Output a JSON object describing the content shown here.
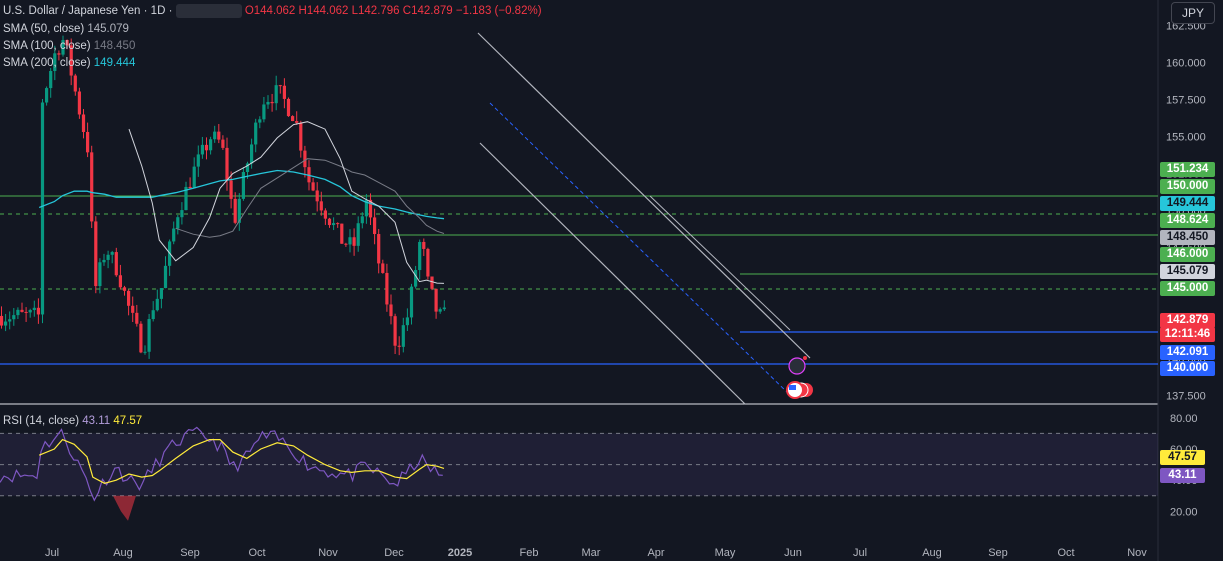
{
  "header": {
    "symbol": "U.S. Dollar / Japanese Yen · 1D ·",
    "open": "O144.062",
    "high": "H144.062",
    "low": "L142.796",
    "close": "C142.879",
    "change": "−1.183 (−0.82%)",
    "sma50_label": "SMA (50, close)",
    "sma50_value": "145.079",
    "sma100_label": "SMA (100, close)",
    "sma100_value": "148.450",
    "sma200_label": "SMA (200, close)",
    "sma200_value": "149.444",
    "rsi_label": "RSI (14, close)",
    "rsi_value": "43.11",
    "rsi_ma_value": "47.57",
    "currency_button": "JPY"
  },
  "price_axis": {
    "ticks": [
      "162.500",
      "160.000",
      "157.500",
      "155.000",
      "152.500",
      "150.000",
      "147.500",
      "145.000",
      "142.500",
      "140.000",
      "137.500"
    ]
  },
  "price_tags": [
    {
      "text": "151.234",
      "bg": "#4caf50",
      "fg": "#ffffff"
    },
    {
      "text": "150.000",
      "bg": "#4caf50",
      "fg": "#ffffff"
    },
    {
      "text": "149.444",
      "bg": "#26c6da",
      "fg": "#131722"
    },
    {
      "text": "148.624",
      "bg": "#4caf50",
      "fg": "#ffffff"
    },
    {
      "text": "148.450",
      "bg": "#b2b5be",
      "fg": "#131722"
    },
    {
      "text": "146.000",
      "bg": "#4caf50",
      "fg": "#ffffff"
    },
    {
      "text": "145.079",
      "bg": "#d1d4dc",
      "fg": "#131722"
    },
    {
      "text": "145.000",
      "bg": "#4caf50",
      "fg": "#ffffff"
    },
    {
      "text": "142.879",
      "bg": "#f23645",
      "fg": "#ffffff"
    },
    {
      "text": "12:11:46",
      "bg": "#f23645",
      "fg": "#ffffff"
    },
    {
      "text": "142.091",
      "bg": "#2962ff",
      "fg": "#ffffff"
    },
    {
      "text": "140.000",
      "bg": "#2962ff",
      "fg": "#ffffff"
    }
  ],
  "rsi_axis": {
    "ticks": [
      "80.00",
      "60.00",
      "40.00",
      "20.00"
    ],
    "tags": [
      {
        "text": "47.57",
        "bg": "#ffeb3b",
        "fg": "#131722"
      },
      {
        "text": "43.11",
        "bg": "#7e57c2",
        "fg": "#ffffff"
      }
    ]
  },
  "time_axis": [
    "Jul",
    "Aug",
    "Sep",
    "Oct",
    "Nov",
    "Dec",
    "2025",
    "Feb",
    "Mar",
    "Apr",
    "May",
    "Jun",
    "Jul",
    "Aug",
    "Sep",
    "Oct",
    "Nov"
  ],
  "colors": {
    "up": "#089981",
    "down": "#f23645",
    "sma50": "#d1d4dc",
    "sma100": "#787b86",
    "sma200": "#26c6da",
    "rsi": "#7e57c2",
    "rsi_ma": "#ffeb3b",
    "green_level": "#4caf50",
    "blue_level": "#2962ff"
  },
  "chart_data": {
    "type": "candlestick",
    "title": "U.S. Dollar / Japanese Yen · 1D",
    "ylim": [
      137.0,
      163.0
    ],
    "dates": [
      "2024-06-20",
      "2024-07-03",
      "2024-07-10",
      "2024-07-20",
      "2024-07-31",
      "2024-08-05",
      "2024-08-15",
      "2024-08-25",
      "2024-09-05",
      "2024-09-16",
      "2024-09-25",
      "2024-10-01",
      "2024-10-15",
      "2024-10-30",
      "2024-11-13",
      "2024-11-22",
      "2024-12-03",
      "2024-12-15",
      "2024-12-27",
      "2025-01-10",
      "2025-01-24",
      "2025-02-05",
      "2025-02-20",
      "2025-03-05",
      "2025-03-15",
      "2025-03-26",
      "2025-04-07",
      "2025-04-21",
      "2025-05-01",
      "2025-05-12",
      "2025-05-18",
      "2025-05-27",
      "2025-06-02"
    ],
    "close": [
      157.0,
      160.8,
      161.6,
      157.9,
      154.0,
      144.5,
      147.5,
      146.0,
      143.0,
      140.6,
      143.8,
      144.6,
      149.8,
      152.8,
      155.0,
      154.5,
      149.3,
      153.5,
      157.5,
      158.0,
      156.3,
      152.0,
      149.8,
      148.0,
      147.5,
      150.8,
      146.0,
      140.8,
      143.0,
      148.3,
      145.0,
      142.8,
      142.879
    ],
    "sma50": [
      null,
      null,
      null,
      null,
      null,
      null,
      null,
      null,
      155.5,
      153.0,
      150.5,
      148.0,
      146.6,
      147.5,
      149.5,
      151.5,
      152.5,
      153.0,
      153.6,
      154.9,
      155.8,
      156.0,
      155.5,
      153.5,
      151.3,
      150.8,
      150.3,
      149.2,
      146.5,
      145.2,
      145.3,
      145.1,
      145.079
    ],
    "sma100": [
      null,
      null,
      null,
      null,
      null,
      null,
      null,
      null,
      null,
      null,
      null,
      null,
      148.8,
      148.4,
      148.2,
      148.3,
      148.6,
      150.1,
      151.5,
      152.2,
      152.9,
      153.5,
      153.4,
      153.0,
      152.6,
      152.4,
      151.9,
      151.3,
      150.3,
      149.5,
      149.0,
      148.6,
      148.45
    ],
    "sma200": [
      150.2,
      150.6,
      151.0,
      151.3,
      151.3,
      151.2,
      151.1,
      150.9,
      150.9,
      150.9,
      150.9,
      151.0,
      151.2,
      151.5,
      151.8,
      152.0,
      152.1,
      152.3,
      152.5,
      152.7,
      152.6,
      152.4,
      152.1,
      151.6,
      151.0,
      150.6,
      150.3,
      150.1,
      149.9,
      149.7,
      149.6,
      149.5,
      149.444
    ],
    "rsi": [
      60,
      67,
      70,
      55,
      40,
      28,
      40,
      48,
      40,
      37,
      47,
      53,
      64,
      70,
      67,
      62,
      48,
      55,
      68,
      67,
      59,
      50,
      46,
      44,
      43,
      49,
      44,
      37,
      44,
      54,
      49,
      45,
      43.11
    ],
    "rsi_ma": [
      56,
      60,
      66,
      63,
      55,
      42,
      38,
      40,
      44,
      42,
      43,
      46,
      54,
      62,
      66,
      66,
      58,
      54,
      60,
      64,
      62,
      56,
      50,
      46,
      45,
      46,
      46,
      42,
      41,
      47,
      50,
      49,
      47.57
    ],
    "levels_green": [
      151.234,
      150.0,
      148.624,
      146.0,
      145.0
    ],
    "levels_blue": [
      142.091,
      140.0
    ],
    "current_price": 142.879,
    "countdown": "12:11:46",
    "rsi_ylim": [
      10,
      85
    ],
    "rsi_bands": [
      30,
      50,
      70
    ],
    "channel": {
      "upper_start": [
        "2024-12-27",
        163.0
      ],
      "upper_end": [
        "2025-05-27",
        143.0
      ],
      "lower_start": [
        "2024-12-27",
        154.0
      ],
      "lower_end": [
        "2025-05-25",
        137.0
      ],
      "mid_start": [
        "2025-01-08",
        158.0
      ],
      "mid_end": [
        "2025-05-24",
        138.7
      ]
    }
  }
}
